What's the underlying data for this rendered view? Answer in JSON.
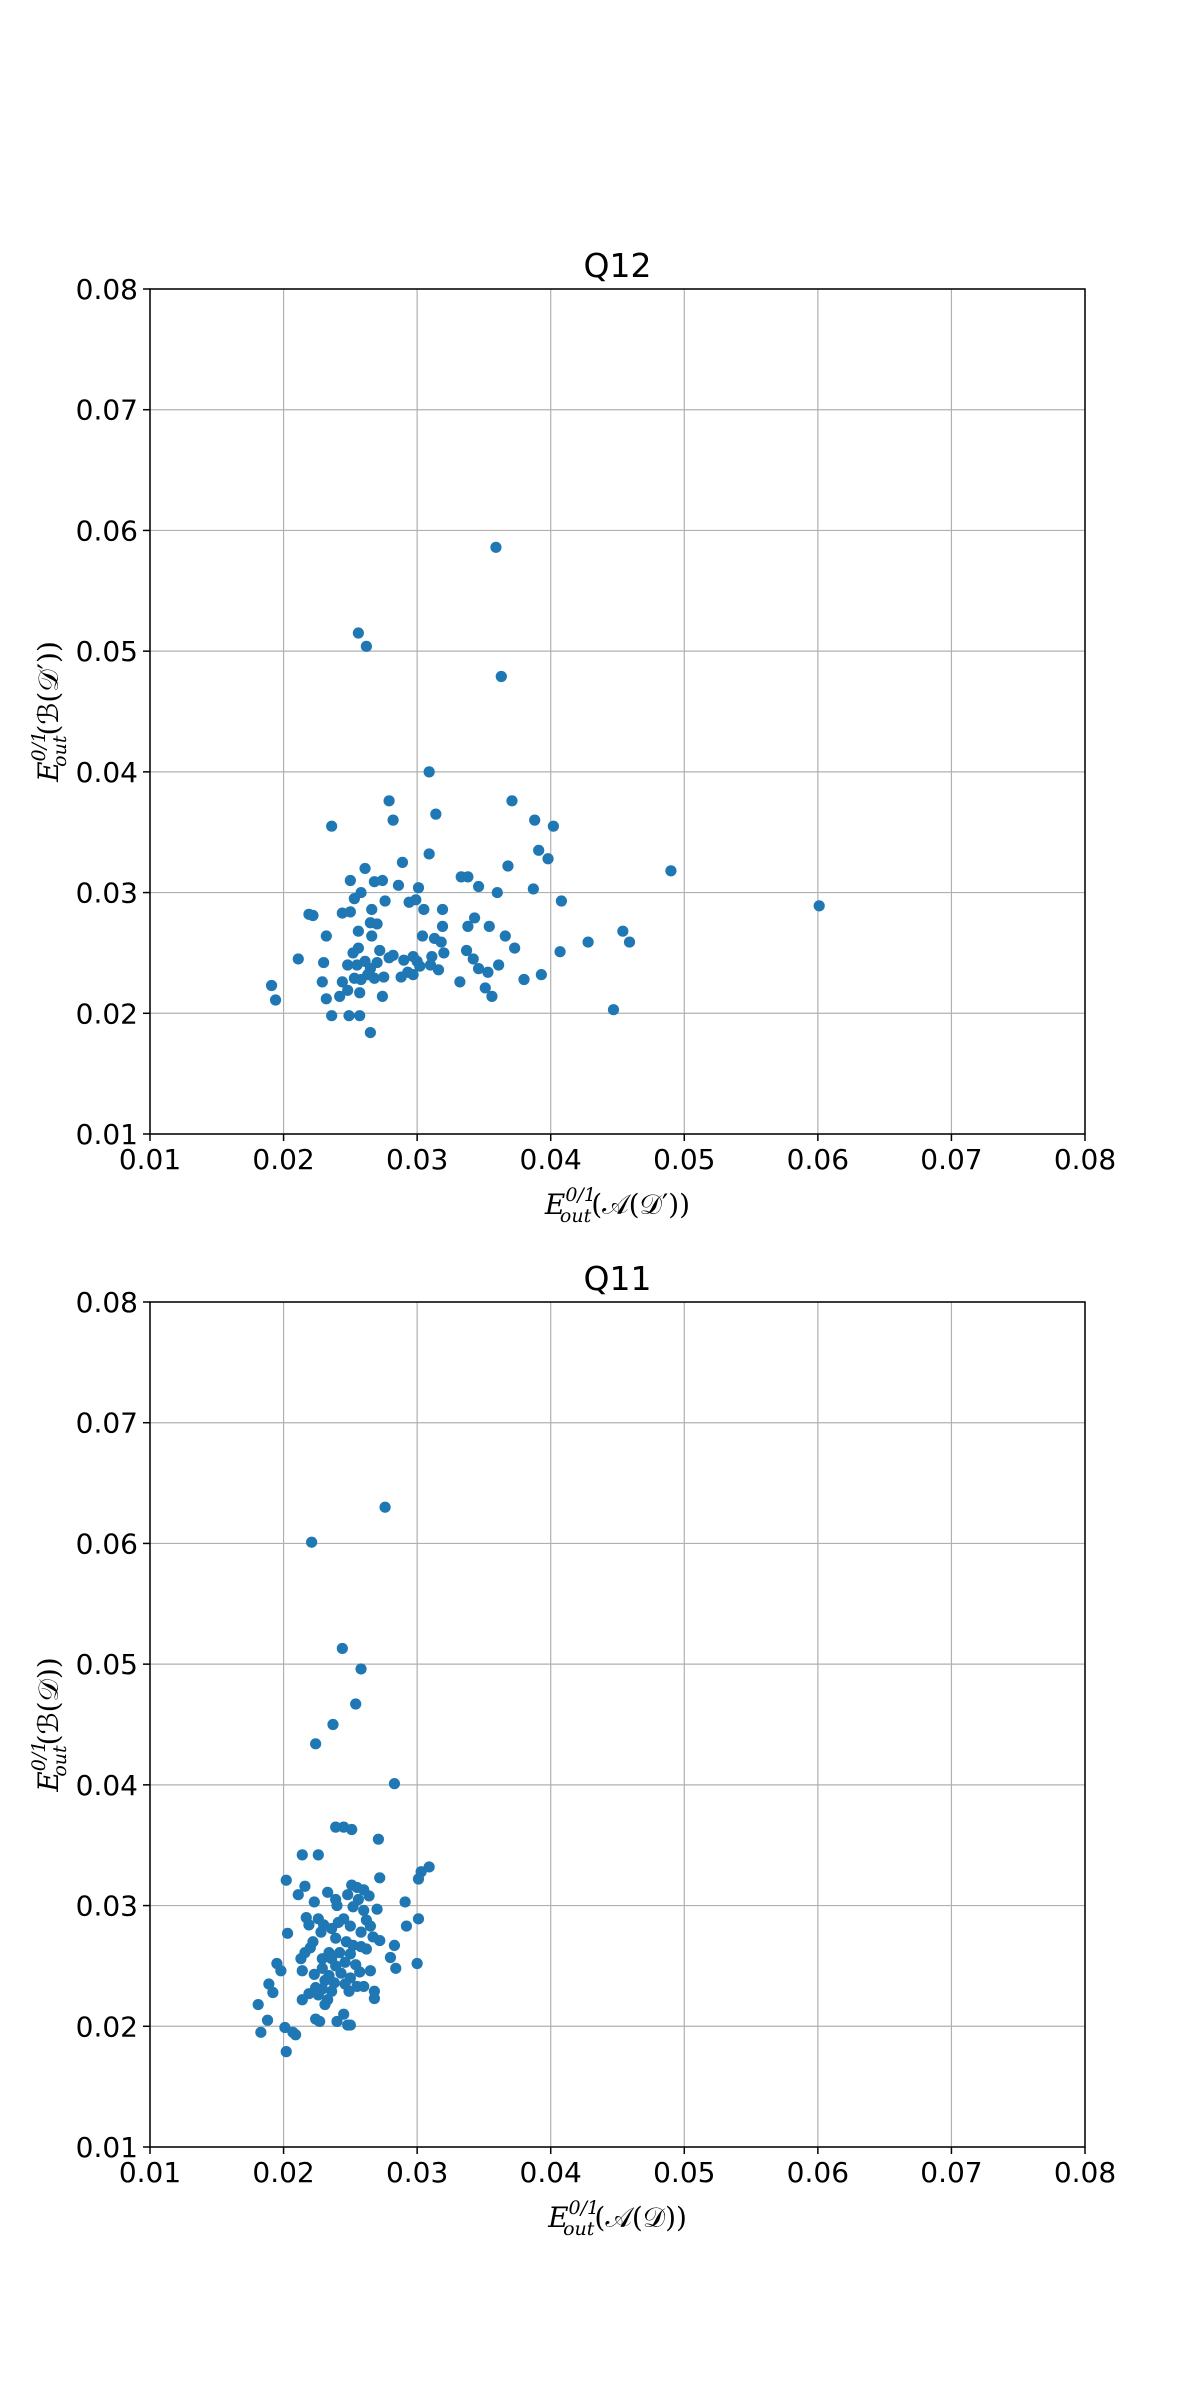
{
  "chart_data": [
    {
      "type": "scatter",
      "title": "Q12",
      "xlabel": {
        "base": "E",
        "sup": "0/1",
        "sub": "out",
        "arg": "(𝒜(𝒟′))"
      },
      "ylabel": {
        "base": "E",
        "sup": "0/1",
        "sub": "out",
        "arg": "(ℬ(𝒟′))"
      },
      "xlim": [
        0.01,
        0.08
      ],
      "ylim": [
        0.01,
        0.08
      ],
      "xticks": [
        "0.01",
        "0.02",
        "0.03",
        "0.04",
        "0.05",
        "0.06",
        "0.07",
        "0.08"
      ],
      "yticks": [
        "0.01",
        "0.02",
        "0.03",
        "0.04",
        "0.05",
        "0.06",
        "0.07",
        "0.08"
      ],
      "grid": true,
      "color": "#1f77b4",
      "points": [
        [
          0.0359,
          0.0586
        ],
        [
          0.0256,
          0.0515
        ],
        [
          0.0262,
          0.0504
        ],
        [
          0.0363,
          0.0479
        ],
        [
          0.0309,
          0.04
        ],
        [
          0.0279,
          0.0376
        ],
        [
          0.0371,
          0.0376
        ],
        [
          0.0314,
          0.0365
        ],
        [
          0.0282,
          0.036
        ],
        [
          0.0388,
          0.036
        ],
        [
          0.0236,
          0.0355
        ],
        [
          0.0402,
          0.0355
        ],
        [
          0.0391,
          0.0335
        ],
        [
          0.0309,
          0.0332
        ],
        [
          0.0398,
          0.0328
        ],
        [
          0.0289,
          0.0325
        ],
        [
          0.0368,
          0.0322
        ],
        [
          0.0261,
          0.032
        ],
        [
          0.049,
          0.0318
        ],
        [
          0.0333,
          0.0313
        ],
        [
          0.0338,
          0.0313
        ],
        [
          0.025,
          0.031
        ],
        [
          0.0268,
          0.0309
        ],
        [
          0.0274,
          0.031
        ],
        [
          0.0286,
          0.0306
        ],
        [
          0.0346,
          0.0305
        ],
        [
          0.0301,
          0.0304
        ],
        [
          0.0258,
          0.03
        ],
        [
          0.036,
          0.03
        ],
        [
          0.0387,
          0.0303
        ],
        [
          0.0253,
          0.0295
        ],
        [
          0.0276,
          0.0293
        ],
        [
          0.0294,
          0.0292
        ],
        [
          0.0299,
          0.0294
        ],
        [
          0.0408,
          0.0293
        ],
        [
          0.0601,
          0.0289
        ],
        [
          0.0222,
          0.0281
        ],
        [
          0.0219,
          0.0282
        ],
        [
          0.0244,
          0.0283
        ],
        [
          0.025,
          0.0284
        ],
        [
          0.0266,
          0.0286
        ],
        [
          0.0305,
          0.0286
        ],
        [
          0.0319,
          0.0286
        ],
        [
          0.0343,
          0.0279
        ],
        [
          0.0265,
          0.0275
        ],
        [
          0.027,
          0.0274
        ],
        [
          0.0319,
          0.0272
        ],
        [
          0.0338,
          0.0272
        ],
        [
          0.0354,
          0.0272
        ],
        [
          0.0256,
          0.0268
        ],
        [
          0.0454,
          0.0268
        ],
        [
          0.0266,
          0.0264
        ],
        [
          0.0232,
          0.0264
        ],
        [
          0.0304,
          0.0264
        ],
        [
          0.0313,
          0.0262
        ],
        [
          0.0318,
          0.0259
        ],
        [
          0.0366,
          0.0264
        ],
        [
          0.0428,
          0.0259
        ],
        [
          0.0459,
          0.0259
        ],
        [
          0.0256,
          0.0254
        ],
        [
          0.0272,
          0.0252
        ],
        [
          0.0252,
          0.025
        ],
        [
          0.0337,
          0.0252
        ],
        [
          0.032,
          0.025
        ],
        [
          0.0373,
          0.0254
        ],
        [
          0.0407,
          0.0251
        ],
        [
          0.0282,
          0.0248
        ],
        [
          0.029,
          0.0244
        ],
        [
          0.0297,
          0.0247
        ],
        [
          0.0211,
          0.0245
        ],
        [
          0.03,
          0.0243
        ],
        [
          0.0311,
          0.0247
        ],
        [
          0.0342,
          0.0245
        ],
        [
          0.0261,
          0.0243
        ],
        [
          0.027,
          0.0242
        ],
        [
          0.023,
          0.0242
        ],
        [
          0.0248,
          0.024
        ],
        [
          0.0255,
          0.024
        ],
        [
          0.0279,
          0.0246
        ],
        [
          0.0302,
          0.0239
        ],
        [
          0.031,
          0.024
        ],
        [
          0.0361,
          0.024
        ],
        [
          0.0346,
          0.0237
        ],
        [
          0.0316,
          0.0236
        ],
        [
          0.0265,
          0.0237
        ],
        [
          0.0263,
          0.0232
        ],
        [
          0.0268,
          0.0229
        ],
        [
          0.0275,
          0.023
        ],
        [
          0.0293,
          0.0234
        ],
        [
          0.0297,
          0.0232
        ],
        [
          0.0353,
          0.0234
        ],
        [
          0.0393,
          0.0232
        ],
        [
          0.0288,
          0.023
        ],
        [
          0.038,
          0.0228
        ],
        [
          0.0253,
          0.0229
        ],
        [
          0.0258,
          0.0228
        ],
        [
          0.0229,
          0.0226
        ],
        [
          0.0244,
          0.0226
        ],
        [
          0.0332,
          0.0226
        ],
        [
          0.0191,
          0.0223
        ],
        [
          0.0351,
          0.0221
        ],
        [
          0.0248,
          0.0219
        ],
        [
          0.0257,
          0.0217
        ],
        [
          0.0242,
          0.0214
        ],
        [
          0.0232,
          0.0212
        ],
        [
          0.0274,
          0.0214
        ],
        [
          0.0356,
          0.0214
        ],
        [
          0.0194,
          0.0211
        ],
        [
          0.0447,
          0.0203
        ],
        [
          0.0236,
          0.0198
        ],
        [
          0.0249,
          0.0198
        ],
        [
          0.0257,
          0.0198
        ],
        [
          0.0265,
          0.0184
        ]
      ]
    },
    {
      "type": "scatter",
      "title": "Q11",
      "xlabel": {
        "base": "E",
        "sup": "0/1",
        "sub": "out",
        "arg": "(𝒜(𝒟))"
      },
      "ylabel": {
        "base": "E",
        "sup": "0/1",
        "sub": "out",
        "arg": "(ℬ(𝒟))"
      },
      "xlim": [
        0.01,
        0.08
      ],
      "ylim": [
        0.01,
        0.08
      ],
      "xticks": [
        "0.01",
        "0.02",
        "0.03",
        "0.04",
        "0.05",
        "0.06",
        "0.07",
        "0.08"
      ],
      "yticks": [
        "0.01",
        "0.02",
        "0.03",
        "0.04",
        "0.05",
        "0.06",
        "0.07",
        "0.08"
      ],
      "grid": true,
      "color": "#1f77b4",
      "points": [
        [
          0.0276,
          0.063
        ],
        [
          0.0221,
          0.0601
        ],
        [
          0.0244,
          0.0513
        ],
        [
          0.0258,
          0.0496
        ],
        [
          0.0254,
          0.0467
        ],
        [
          0.0237,
          0.045
        ],
        [
          0.0224,
          0.0434
        ],
        [
          0.0283,
          0.0401
        ],
        [
          0.0239,
          0.0365
        ],
        [
          0.0245,
          0.0365
        ],
        [
          0.0251,
          0.0363
        ],
        [
          0.0271,
          0.0355
        ],
        [
          0.0214,
          0.0342
        ],
        [
          0.0226,
          0.0342
        ],
        [
          0.0309,
          0.0332
        ],
        [
          0.0303,
          0.0328
        ],
        [
          0.0272,
          0.0323
        ],
        [
          0.0301,
          0.0322
        ],
        [
          0.0202,
          0.0321
        ],
        [
          0.0216,
          0.0316
        ],
        [
          0.0251,
          0.0317
        ],
        [
          0.0255,
          0.0315
        ],
        [
          0.026,
          0.0313
        ],
        [
          0.0233,
          0.0311
        ],
        [
          0.0211,
          0.0309
        ],
        [
          0.0248,
          0.0309
        ],
        [
          0.0264,
          0.0308
        ],
        [
          0.0239,
          0.0305
        ],
        [
          0.0256,
          0.0305
        ],
        [
          0.0223,
          0.0303
        ],
        [
          0.0291,
          0.0303
        ],
        [
          0.024,
          0.03
        ],
        [
          0.0252,
          0.0299
        ],
        [
          0.027,
          0.0297
        ],
        [
          0.026,
          0.0296
        ],
        [
          0.0217,
          0.029
        ],
        [
          0.0226,
          0.0289
        ],
        [
          0.0245,
          0.0289
        ],
        [
          0.0301,
          0.0289
        ],
        [
          0.0262,
          0.0288
        ],
        [
          0.0219,
          0.0284
        ],
        [
          0.023,
          0.0284
        ],
        [
          0.0241,
          0.0286
        ],
        [
          0.025,
          0.0283
        ],
        [
          0.0265,
          0.0283
        ],
        [
          0.0292,
          0.0283
        ],
        [
          0.0203,
          0.0277
        ],
        [
          0.0228,
          0.0278
        ],
        [
          0.0236,
          0.0281
        ],
        [
          0.0258,
          0.0278
        ],
        [
          0.0267,
          0.0274
        ],
        [
          0.0239,
          0.0273
        ],
        [
          0.0272,
          0.0271
        ],
        [
          0.0222,
          0.027
        ],
        [
          0.0247,
          0.027
        ],
        [
          0.0252,
          0.0267
        ],
        [
          0.0283,
          0.0267
        ],
        [
          0.022,
          0.0265
        ],
        [
          0.0258,
          0.0266
        ],
        [
          0.0262,
          0.0264
        ],
        [
          0.0216,
          0.0261
        ],
        [
          0.0234,
          0.0261
        ],
        [
          0.0242,
          0.0261
        ],
        [
          0.025,
          0.026
        ],
        [
          0.028,
          0.0257
        ],
        [
          0.0213,
          0.0256
        ],
        [
          0.0229,
          0.0256
        ],
        [
          0.0236,
          0.0256
        ],
        [
          0.0246,
          0.0253
        ],
        [
          0.0195,
          0.0252
        ],
        [
          0.0254,
          0.0251
        ],
        [
          0.03,
          0.0252
        ],
        [
          0.0239,
          0.025
        ],
        [
          0.0229,
          0.0248
        ],
        [
          0.0198,
          0.0246
        ],
        [
          0.0214,
          0.0246
        ],
        [
          0.0257,
          0.0245
        ],
        [
          0.0265,
          0.0246
        ],
        [
          0.0284,
          0.0248
        ],
        [
          0.0223,
          0.0243
        ],
        [
          0.0234,
          0.0242
        ],
        [
          0.0243,
          0.0244
        ],
        [
          0.025,
          0.024
        ],
        [
          0.0231,
          0.0238
        ],
        [
          0.0238,
          0.0236
        ],
        [
          0.0189,
          0.0235
        ],
        [
          0.0246,
          0.0235
        ],
        [
          0.0255,
          0.0233
        ],
        [
          0.026,
          0.0233
        ],
        [
          0.0224,
          0.0232
        ],
        [
          0.0229,
          0.0231
        ],
        [
          0.0236,
          0.0229
        ],
        [
          0.0249,
          0.0229
        ],
        [
          0.0268,
          0.0229
        ],
        [
          0.0192,
          0.0228
        ],
        [
          0.0219,
          0.0227
        ],
        [
          0.0226,
          0.0226
        ],
        [
          0.0233,
          0.0222
        ],
        [
          0.0268,
          0.0223
        ],
        [
          0.0214,
          0.0222
        ],
        [
          0.0231,
          0.0218
        ],
        [
          0.0181,
          0.0218
        ],
        [
          0.0245,
          0.021
        ],
        [
          0.0188,
          0.0205
        ],
        [
          0.0227,
          0.0204
        ],
        [
          0.0224,
          0.0206
        ],
        [
          0.024,
          0.0204
        ],
        [
          0.0248,
          0.0201
        ],
        [
          0.025,
          0.0201
        ],
        [
          0.0201,
          0.0199
        ],
        [
          0.0207,
          0.0195
        ],
        [
          0.0183,
          0.0195
        ],
        [
          0.0209,
          0.0193
        ],
        [
          0.0202,
          0.0179
        ]
      ]
    }
  ]
}
